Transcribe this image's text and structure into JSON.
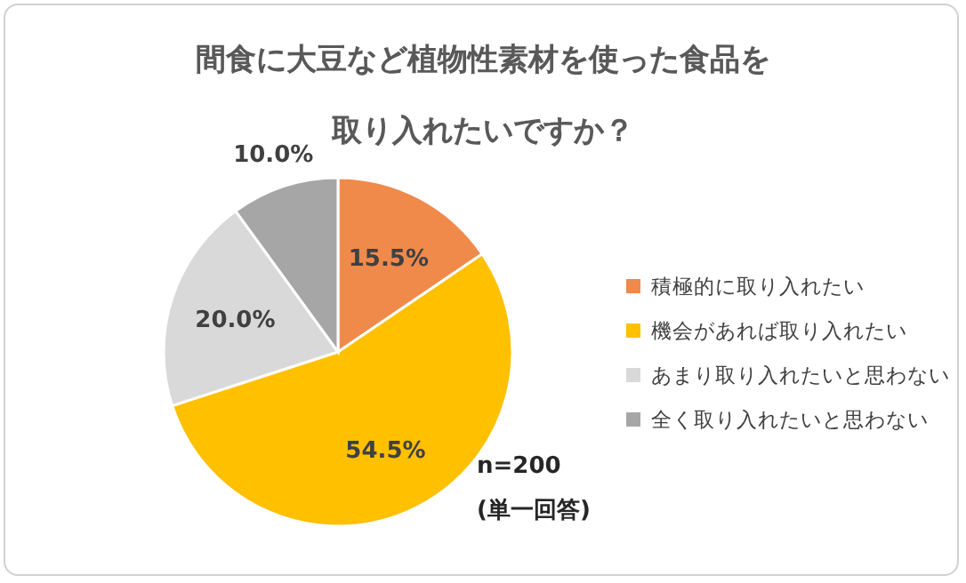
{
  "chart_data": {
    "type": "pie",
    "title": "間食に大豆など植物性素材を使った食品を取り入れたいですか？",
    "categories": [
      "積極的に取り入れたい",
      "機会があれば取り入れたい",
      "あまり取り入れたいと思わない",
      "全く取り入れたいと思わない"
    ],
    "values": [
      15.5,
      54.5,
      20.0,
      10.0
    ],
    "colors": [
      "#f08a4b",
      "#ffc000",
      "#d9d9d9",
      "#a6a6a6"
    ],
    "value_labels": [
      "15.5%",
      "54.5%",
      "20.0%",
      "10.0%"
    ],
    "legend": "right",
    "annotations": [
      "n=200",
      "(単一回答)"
    ]
  }
}
